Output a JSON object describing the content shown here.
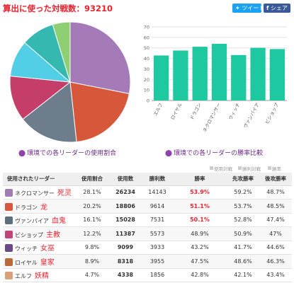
{
  "header": {
    "title": "算出に使った対戦数：93210",
    "share_twitter": "ツイート",
    "share_facebook": "シェア",
    "twitter_icon": "bird-icon",
    "facebook_icon": "f-logo-icon"
  },
  "captions": {
    "usage": "環境での各リーダーの使用割合",
    "winrate": "環境での各リーダーの勝率比較"
  },
  "tabs": [
    "使用対戦",
    "勝利対戦",
    "勝率"
  ],
  "table": {
    "headers": [
      "使用されたリーダー",
      "使用割合",
      "使用数",
      "勝利数",
      "勝率",
      "先攻勝率",
      "後攻勝率"
    ],
    "rows": [
      {
        "name": "ネクロマンサー",
        "cn": "死灵",
        "ratio": "28.1%",
        "count": "26234",
        "wins": "14143",
        "winrate": "53.9%",
        "first": "59.2%",
        "second": "48.7%",
        "highlight": true,
        "color": "#a07bb5"
      },
      {
        "name": "ドラゴン",
        "cn": "龙",
        "ratio": "20.2%",
        "count": "18806",
        "wins": "9614",
        "winrate": "51.1%",
        "first": "53.7%",
        "second": "48.5%",
        "highlight": true,
        "color": "#d9573a"
      },
      {
        "name": "ヴァンパイア",
        "cn": "血鬼",
        "ratio": "16.1%",
        "count": "15028",
        "wins": "7531",
        "winrate": "50.1%",
        "first": "52.8%",
        "second": "47.4%",
        "highlight": true,
        "color": "#5c6f7f"
      },
      {
        "name": "ビショップ",
        "cn": "主教",
        "ratio": "12.2%",
        "count": "11387",
        "wins": "5573",
        "winrate": "48.9%",
        "first": "50.9%",
        "second": "47%",
        "highlight": false,
        "color": "#c0437a"
      },
      {
        "name": "ウィッチ",
        "cn": "女巫",
        "ratio": "9.8%",
        "count": "9099",
        "wins": "3933",
        "winrate": "43.2%",
        "first": "41.7%",
        "second": "44.6%",
        "highlight": false,
        "color": "#6b4a8a"
      },
      {
        "name": "ロイヤル",
        "cn": "皇家",
        "ratio": "8.9%",
        "count": "8318",
        "wins": "3955",
        "winrate": "47.5%",
        "first": "48.6%",
        "second": "46.3%",
        "highlight": false,
        "color": "#b86a3a"
      },
      {
        "name": "エルフ",
        "cn": "妖精",
        "ratio": "4.7%",
        "count": "4338",
        "wins": "1856",
        "winrate": "42.8%",
        "first": "42.1%",
        "second": "43.4%",
        "highlight": false,
        "color": "#d9a07a"
      }
    ]
  },
  "chart_data": [
    {
      "type": "pie",
      "categories": [
        "ネクロマンサー",
        "ドラゴン",
        "ヴァンパイア",
        "ビショップ",
        "ウィッチ",
        "ロイヤル",
        "エルフ"
      ],
      "values": [
        28.1,
        20.2,
        16.1,
        12.2,
        9.8,
        8.9,
        4.7
      ],
      "colors": [
        "#a47bb8",
        "#d6573a",
        "#6e7d8c",
        "#c53e6a",
        "#52cfe6",
        "#35b8b0",
        "#8ecf74"
      ]
    },
    {
      "type": "bar",
      "categories": [
        "エルフ",
        "ロイヤル",
        "ドラゴン",
        "ネクロマンサー",
        "ウィッチ",
        "ヴァンパイア",
        "ビショップ"
      ],
      "values": [
        42.8,
        47.5,
        51.1,
        53.9,
        43.2,
        50.1,
        48.9
      ],
      "ylim": [
        0,
        70
      ],
      "yticks": [
        0,
        10,
        20,
        30,
        40,
        50,
        60,
        70
      ],
      "color": "#1ec8a0",
      "grid": true
    }
  ]
}
